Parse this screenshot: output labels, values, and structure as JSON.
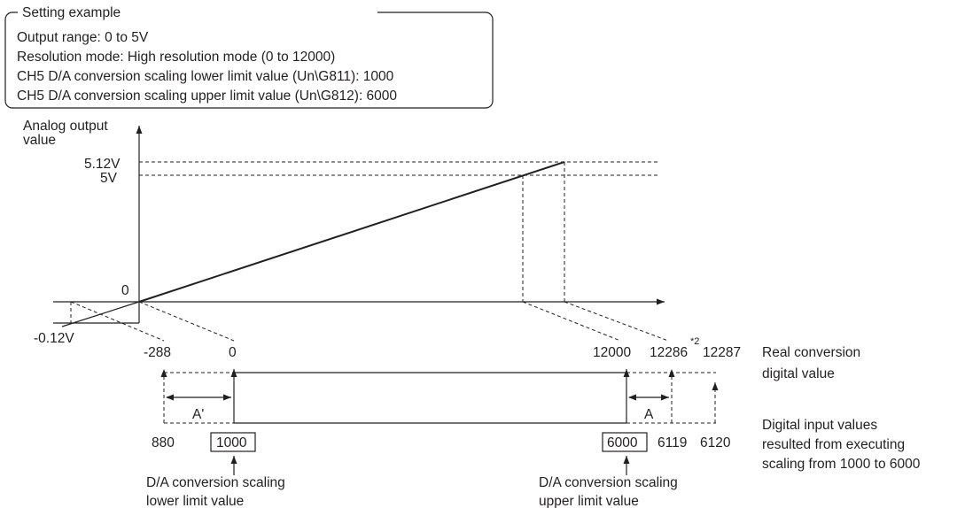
{
  "setting_box": {
    "title": "Setting example",
    "lines": [
      "Output range: 0 to 5V",
      "Resolution mode: High resolution mode (0 to 12000)",
      "CH5 D/A conversion scaling lower limit value (Un\\G811): 1000",
      "CH5 D/A conversion scaling upper limit value (Un\\G812): 6000"
    ]
  },
  "y_axis": {
    "label_line1": "Analog output",
    "label_line2": "value",
    "ticks": {
      "v512": "5.12V",
      "v5": "5V",
      "zero": "0",
      "neg": "-0.12V"
    }
  },
  "real_values": {
    "neg288": "-288",
    "zero": "0",
    "v12000": "12000",
    "v12286": "12286",
    "v12287": "12287",
    "note": "*2",
    "label_line1": "Real conversion",
    "label_line2": "digital value"
  },
  "digital_values": {
    "v880": "880",
    "v1000": "1000",
    "v6000": "6000",
    "v6119": "6119",
    "v6120": "6120",
    "label_lines": [
      "Digital input values",
      "resulted from executing",
      "scaling from 1000 to 6000"
    ]
  },
  "spans": {
    "a_prime": "A'",
    "a": "A"
  },
  "callouts": {
    "lower_line1": "D/A conversion scaling",
    "lower_line2": "lower limit value",
    "upper_line1": "D/A conversion scaling",
    "upper_line2": "upper limit value"
  }
}
